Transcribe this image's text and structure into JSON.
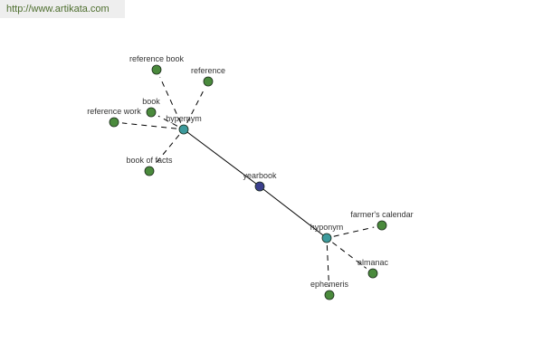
{
  "watermark": "http://www.artikata.com",
  "colors": {
    "center": "#3b3f8c",
    "relation": "#3c9a9c",
    "word": "#4a8a3c"
  },
  "nodes": [
    {
      "id": "yearbook",
      "label": "yearbook",
      "kind": "center"
    },
    {
      "id": "hypernym",
      "label": "hypernym",
      "kind": "relation"
    },
    {
      "id": "hyponym",
      "label": "hyponym",
      "kind": "relation"
    },
    {
      "id": "reference_book",
      "label": "reference book",
      "kind": "word"
    },
    {
      "id": "reference",
      "label": "reference",
      "kind": "word"
    },
    {
      "id": "book",
      "label": "book",
      "kind": "word"
    },
    {
      "id": "reference_work",
      "label": "reference work",
      "kind": "word"
    },
    {
      "id": "book_of_facts",
      "label": "book of facts",
      "kind": "word"
    },
    {
      "id": "farmers_calendar",
      "label": "farmer's calendar",
      "kind": "word"
    },
    {
      "id": "almanac",
      "label": "almanac",
      "kind": "word"
    },
    {
      "id": "ephemeris",
      "label": "ephemeris",
      "kind": "word"
    }
  ],
  "edges": [
    {
      "from": "yearbook",
      "to": "hypernym",
      "style": "solid"
    },
    {
      "from": "yearbook",
      "to": "hyponym",
      "style": "solid"
    },
    {
      "from": "hypernym",
      "to": "reference_book",
      "style": "dashed"
    },
    {
      "from": "hypernym",
      "to": "reference",
      "style": "dashed"
    },
    {
      "from": "hypernym",
      "to": "book",
      "style": "dashed"
    },
    {
      "from": "hypernym",
      "to": "reference_work",
      "style": "dashed"
    },
    {
      "from": "hypernym",
      "to": "book_of_facts",
      "style": "dashed"
    },
    {
      "from": "hyponym",
      "to": "farmers_calendar",
      "style": "dashed"
    },
    {
      "from": "hyponym",
      "to": "almanac",
      "style": "dashed"
    },
    {
      "from": "hyponym",
      "to": "ephemeris",
      "style": "dashed"
    }
  ]
}
